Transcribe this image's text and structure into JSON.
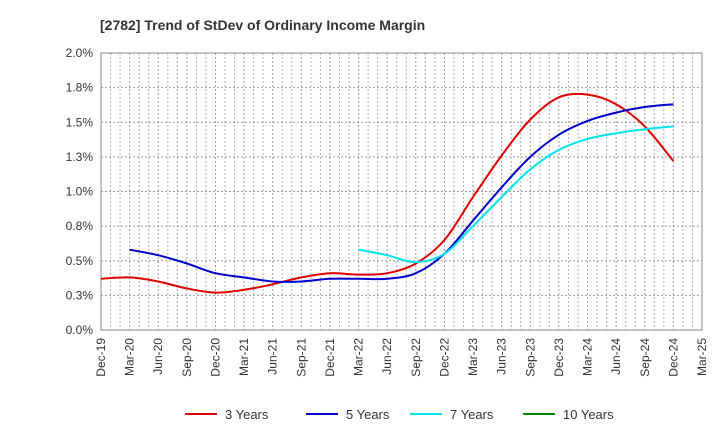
{
  "chart_data": {
    "type": "line",
    "title": "[2782]  Trend of StDev of Ordinary Income Margin",
    "xlabel": "",
    "ylabel": "",
    "x_labels": [
      "Dec-19",
      "Mar-20",
      "Jun-20",
      "Sep-20",
      "Dec-20",
      "Mar-21",
      "Jun-21",
      "Sep-21",
      "Dec-21",
      "Mar-22",
      "Jun-22",
      "Sep-22",
      "Dec-22",
      "Mar-23",
      "Jun-23",
      "Sep-23",
      "Dec-23",
      "Mar-24",
      "Jun-24",
      "Sep-24",
      "Dec-24",
      "Mar-25"
    ],
    "y_ticks": [
      "0.0%",
      "0.3%",
      "0.5%",
      "0.8%",
      "1.0%",
      "1.3%",
      "1.5%",
      "1.8%",
      "2.0%"
    ],
    "ylim": [
      0,
      2.0
    ],
    "grid": true,
    "legend_position": "bottom",
    "series": [
      {
        "name": "3 Years",
        "color": "#e00000",
        "values": [
          0.37,
          0.38,
          0.35,
          0.3,
          0.27,
          0.29,
          0.33,
          0.38,
          0.41,
          0.4,
          0.41,
          0.48,
          0.65,
          0.96,
          1.26,
          1.52,
          1.68,
          1.7,
          1.63,
          1.47,
          1.22,
          null
        ]
      },
      {
        "name": "5 Years",
        "color": "#0000cc",
        "values": [
          null,
          0.58,
          0.54,
          0.48,
          0.41,
          0.38,
          0.35,
          0.35,
          0.37,
          0.37,
          0.37,
          0.41,
          0.55,
          0.79,
          1.03,
          1.25,
          1.41,
          1.51,
          1.57,
          1.61,
          1.63,
          null
        ]
      },
      {
        "name": "7 Years",
        "color": "#00e5ee",
        "values": [
          null,
          null,
          null,
          null,
          null,
          null,
          null,
          null,
          null,
          0.58,
          0.54,
          0.49,
          0.55,
          0.75,
          0.96,
          1.16,
          1.3,
          1.38,
          1.42,
          1.45,
          1.47,
          null
        ]
      },
      {
        "name": "10 Years",
        "color": "#008800",
        "values": [
          null,
          null,
          null,
          null,
          null,
          null,
          null,
          null,
          null,
          null,
          null,
          null,
          null,
          null,
          null,
          null,
          null,
          null,
          null,
          null,
          null,
          null
        ]
      }
    ]
  }
}
